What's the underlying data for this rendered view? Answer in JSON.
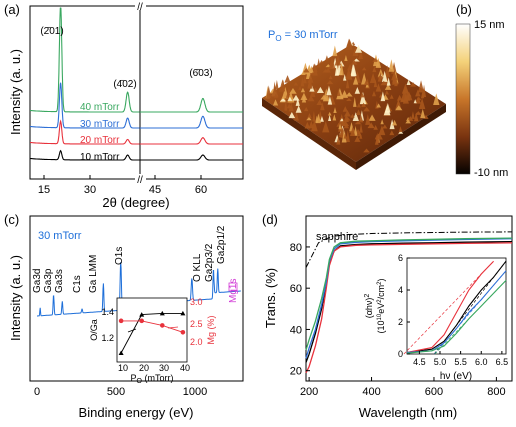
{
  "panels": {
    "a": {
      "tag": "(a)",
      "xlabel": "2θ (degree)",
      "ylabel": "Intensity (a. u.)",
      "axis_break_mark": "//",
      "x_ticks_left": [
        "15",
        "30"
      ],
      "x_ticks_right": [
        "45",
        "60"
      ],
      "peak_labels": [
        "(2̄01)",
        "(4̄02)",
        "(6̄03)"
      ],
      "series_labels": [
        "40 mTorr",
        "30 mTorr",
        "20 mTorr",
        "10 mTorr"
      ]
    },
    "b": {
      "tag": "(b)",
      "pressure_label": "P",
      "pressure_sub": "O",
      "pressure_value": " = 30 mTorr",
      "colorbar_max": "15 nm",
      "colorbar_min": "-10 nm"
    },
    "c": {
      "tag": "(c)",
      "xlabel": "Binding energy (eV)",
      "ylabel": "Intensity (a. u.)",
      "series_label": "30 mTorr",
      "x_ticks": [
        "0",
        "500",
        "1000"
      ],
      "peaks": [
        "Ga3d",
        "Ga3p",
        "Ga3s",
        "C1s",
        "Ga LMM",
        "O1s",
        "O KLL",
        "Ga2p3/2",
        "Ga2p1/2"
      ],
      "mg_label": "Mg1s",
      "inset": {
        "xlabel_main": "P",
        "xlabel_sub": "O",
        "xlabel_rest": " (mTorr)",
        "ylabel_left": "O/Ga",
        "ylabel_right": "Mg (%)",
        "x_ticks": [
          "10",
          "20",
          "30",
          "40"
        ],
        "yl_ticks": [
          "1.2",
          "1.4"
        ],
        "yr_ticks": [
          "2.0",
          "2.5",
          "3.0"
        ]
      }
    },
    "d": {
      "tag": "(d)",
      "xlabel": "Wavelength (nm)",
      "ylabel": "Trans. (%)",
      "sapphire_label": "sapphire",
      "x_ticks": [
        "200",
        "400",
        "600",
        "800"
      ],
      "y_ticks": [
        "20",
        "40",
        "60",
        "80"
      ],
      "inset": {
        "xlabel": "hν (eV)",
        "ylabel_top": "(αhν)",
        "ylabel_top_sup": "2",
        "ylabel_bottom": "(10",
        "ylabel_bottom_sup": "10",
        "ylabel_bottom_rest": "eV",
        "ylabel_bottom_sup2": "2",
        "ylabel_bottom_end": "/cm",
        "ylabel_bottom_sup3": "2",
        "ylabel_bottom_close": ")",
        "x_ticks": [
          "4.5",
          "5.0",
          "5.5",
          "6.0",
          "6.5"
        ],
        "y_ticks": [
          "0",
          "2",
          "4",
          "6"
        ]
      }
    }
  },
  "colors": {
    "p10": "#000000",
    "p20": "#e8323c",
    "p30": "#2e6fd6",
    "p40": "#3aa860",
    "xps": "#1e6fd9",
    "label_blue": "#1e6fd9",
    "mg_magenta": "#d23bd6",
    "inset_red": "#e8323c"
  },
  "chart_data": [
    {
      "panel": "a",
      "type": "line",
      "xlabel": "2θ (degree)",
      "ylabel": "Intensity (a. u.)",
      "xlim_left": [
        10,
        42
      ],
      "xlim_right": [
        42,
        70
      ],
      "x_axis_break": true,
      "peak_positions_deg": [
        18.9,
        38.4,
        59.1
      ],
      "series": [
        {
          "name": "10 mTorr",
          "offset": 0,
          "peak_heights": [
            1.0,
            0.55,
            0.55
          ]
        },
        {
          "name": "20 mTorr",
          "offset": 1,
          "peak_heights": [
            2.5,
            0.5,
            0.7
          ]
        },
        {
          "name": "30 mTorr",
          "offset": 2,
          "peak_heights": [
            5.0,
            1.1,
            1.3
          ]
        },
        {
          "name": "40 mTorr",
          "offset": 3,
          "peak_heights": [
            12.0,
            2.2,
            1.5
          ]
        }
      ]
    },
    {
      "panel": "c-inset",
      "type": "scatter",
      "x": [
        10,
        20,
        30,
        40
      ],
      "series": [
        {
          "name": "O/Ga",
          "axis": "left",
          "values": [
            1.17,
            1.47,
            1.48,
            1.48
          ]
        },
        {
          "name": "Mg (%)",
          "axis": "right",
          "values": [
            2.7,
            2.7,
            2.6,
            2.45
          ]
        }
      ],
      "ylim_left": [
        1.1,
        1.6
      ],
      "ylim_right": [
        1.8,
        3.2
      ],
      "xlim": [
        8,
        42
      ]
    },
    {
      "panel": "d",
      "type": "line",
      "xlabel": "Wavelength (nm)",
      "ylabel": "Trans. (%)",
      "xlim": [
        190,
        850
      ],
      "ylim": [
        15,
        95
      ],
      "series": [
        {
          "name": "sapphire",
          "style": "dash-dot",
          "x": [
            190,
            230,
            270,
            320,
            400,
            500,
            600,
            700,
            850
          ],
          "y": [
            70,
            82,
            85,
            86,
            86.5,
            86.8,
            87,
            87.2,
            87.3
          ]
        },
        {
          "name": "10 mTorr",
          "x": [
            190,
            200,
            220,
            240,
            255,
            265,
            280,
            300,
            350,
            400,
            500,
            600,
            700,
            850
          ],
          "y": [
            24,
            28,
            38,
            50,
            62,
            72,
            78,
            80.5,
            81.2,
            81.5,
            81.8,
            82,
            82.3,
            82.6
          ]
        },
        {
          "name": "20 mTorr",
          "x": [
            190,
            200,
            220,
            240,
            255,
            265,
            280,
            300,
            350,
            400,
            500,
            600,
            700,
            850
          ],
          "y": [
            19,
            22,
            32,
            45,
            60,
            71,
            78,
            80,
            80.8,
            81,
            81.3,
            81.5,
            81.7,
            82
          ]
        },
        {
          "name": "30 mTorr",
          "x": [
            190,
            200,
            220,
            240,
            255,
            265,
            280,
            300,
            350,
            400,
            500,
            600,
            700,
            850
          ],
          "y": [
            26,
            31,
            40,
            52,
            63,
            73,
            79,
            81.5,
            82.2,
            82.6,
            83,
            83.3,
            83.6,
            84
          ]
        },
        {
          "name": "40 mTorr",
          "x": [
            190,
            200,
            220,
            240,
            255,
            265,
            280,
            300,
            350,
            400,
            500,
            600,
            700,
            850
          ],
          "y": [
            30,
            35,
            44,
            55,
            65,
            74,
            80,
            82,
            82.8,
            83,
            83.4,
            83.7,
            84,
            84.3
          ]
        }
      ]
    },
    {
      "panel": "d-inset",
      "type": "line",
      "xlabel": "hν (eV)",
      "xlim": [
        4.2,
        6.6
      ],
      "ylim": [
        0,
        6
      ],
      "series": [
        {
          "name": "10 mTorr",
          "x": [
            4.2,
            4.8,
            5.1,
            5.4,
            5.7,
            6.0,
            6.3,
            6.6
          ],
          "y": [
            0.1,
            0.3,
            0.8,
            1.8,
            3.0,
            4.0,
            4.8,
            5.8
          ]
        },
        {
          "name": "20 mTorr",
          "x": [
            4.2,
            4.8,
            5.1,
            5.4,
            5.7,
            6.0,
            6.3
          ],
          "y": [
            0.1,
            0.4,
            1.2,
            2.6,
            4.0,
            5.0,
            5.8
          ]
        },
        {
          "name": "30 mTorr",
          "x": [
            4.2,
            4.8,
            5.1,
            5.4,
            5.7,
            6.0,
            6.3,
            6.6
          ],
          "y": [
            0.1,
            0.2,
            0.7,
            1.6,
            2.6,
            3.4,
            4.3,
            5.2
          ]
        },
        {
          "name": "40 mTorr",
          "x": [
            4.2,
            4.8,
            5.1,
            5.4,
            5.7,
            6.0,
            6.3,
            6.6
          ],
          "y": [
            0.05,
            0.2,
            0.5,
            1.3,
            2.2,
            3.0,
            3.8,
            4.6
          ]
        }
      ]
    }
  ]
}
